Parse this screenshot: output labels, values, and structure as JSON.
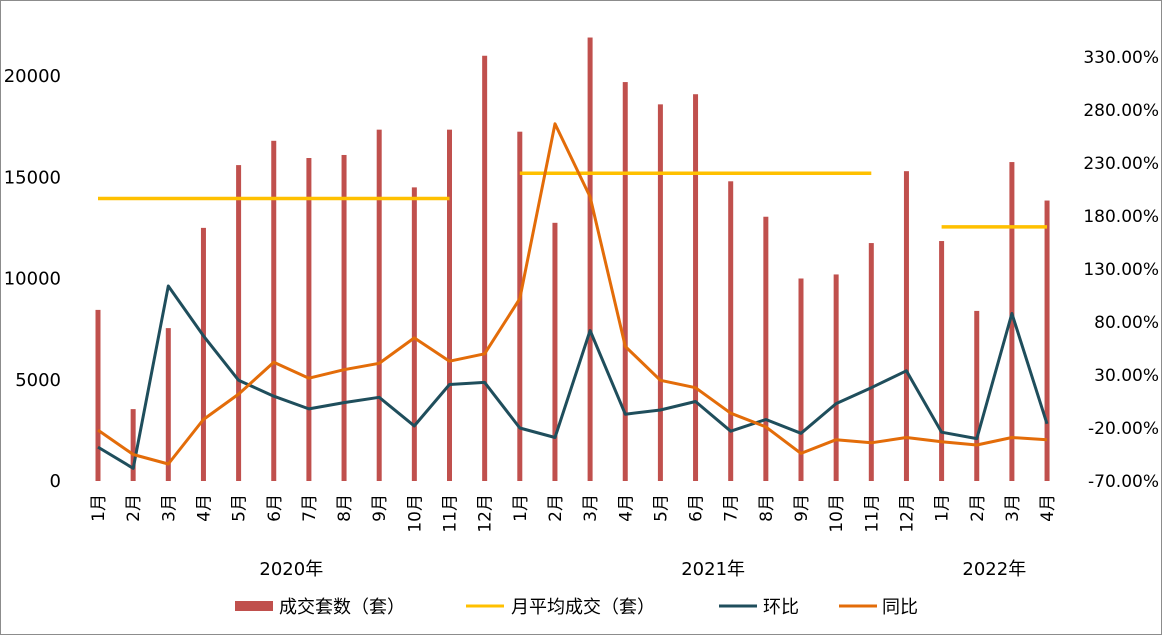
{
  "chart_data": {
    "type": "bar+line",
    "title": "",
    "categories": [
      "1月",
      "2月",
      "3月",
      "4月",
      "5月",
      "6月",
      "7月",
      "8月",
      "9月",
      "10月",
      "11月",
      "12月",
      "1月",
      "2月",
      "3月",
      "4月",
      "5月",
      "6月",
      "7月",
      "8月",
      "9月",
      "10月",
      "11月",
      "12月",
      "1月",
      "2月",
      "3月",
      "4月"
    ],
    "year_groups": [
      {
        "label": "2020年",
        "start": 0,
        "end": 11
      },
      {
        "label": "2021年",
        "start": 12,
        "end": 23
      },
      {
        "label": "2022年",
        "start": 24,
        "end": 27
      }
    ],
    "left_axis": {
      "ylim": [
        0,
        22500
      ],
      "ticks": [
        0,
        5000,
        10000,
        15000,
        20000
      ],
      "tick_labels": [
        "0",
        "5000",
        "10000",
        "15000",
        "20000"
      ]
    },
    "right_axis": {
      "ylim": [
        -0.7,
        3.6
      ],
      "ticks": [
        -0.7,
        -0.2,
        0.3,
        0.8,
        1.3,
        1.8,
        2.3,
        2.8,
        3.3
      ],
      "tick_labels": [
        "-70.00%",
        "-20.00%",
        "30.00%",
        "80.00%",
        "130.00%",
        "180.00%",
        "230.00%",
        "280.00%",
        "330.00%"
      ]
    },
    "series": [
      {
        "name": "成交套数（套）",
        "type": "bar",
        "axis": "left",
        "color": "#c0504d",
        "values": [
          8450,
          3550,
          7550,
          12500,
          15600,
          16800,
          15950,
          16100,
          17350,
          14500,
          17350,
          21000,
          17250,
          12750,
          21900,
          19700,
          18600,
          19100,
          14800,
          13050,
          10000,
          10200,
          11750,
          15300,
          11850,
          8400,
          15750,
          13850
        ]
      },
      {
        "name": "月平均成交（套）",
        "type": "segment",
        "axis": "left",
        "color": "#ffc000",
        "segments": [
          {
            "start": 0,
            "end": 10,
            "value": 13950
          },
          {
            "start": 12,
            "end": 22,
            "value": 15200
          },
          {
            "start": 24,
            "end": 27,
            "value": 12550
          }
        ]
      },
      {
        "name": "环比",
        "type": "line",
        "axis": "right",
        "color": "#1f4e5c",
        "values": [
          -0.38,
          -0.58,
          1.14,
          0.67,
          0.25,
          0.1,
          -0.02,
          0.04,
          0.09,
          -0.18,
          0.21,
          0.23,
          -0.2,
          -0.29,
          0.72,
          -0.07,
          -0.03,
          0.05,
          -0.23,
          -0.12,
          -0.25,
          0.03,
          0.18,
          0.34,
          -0.24,
          -0.3,
          0.88,
          -0.16
        ]
      },
      {
        "name": "同比",
        "type": "line",
        "axis": "right",
        "color": "#e36c09",
        "values": [
          -0.22,
          -0.45,
          -0.54,
          -0.12,
          0.12,
          0.42,
          0.27,
          0.35,
          0.41,
          0.65,
          0.43,
          0.5,
          1.02,
          2.67,
          1.98,
          0.57,
          0.25,
          0.18,
          -0.06,
          -0.19,
          -0.44,
          -0.31,
          -0.34,
          -0.29,
          -0.33,
          -0.36,
          -0.29,
          -0.31
        ]
      }
    ],
    "legend": {
      "position": "bottom",
      "items": [
        {
          "label": "成交套数（套）",
          "color": "#c0504d",
          "kind": "box"
        },
        {
          "label": "月平均成交（套）",
          "color": "#ffc000",
          "kind": "line"
        },
        {
          "label": "环比",
          "color": "#1f4e5c",
          "kind": "line"
        },
        {
          "label": "同比",
          "color": "#e36c09",
          "kind": "line"
        }
      ]
    },
    "grid": false
  }
}
